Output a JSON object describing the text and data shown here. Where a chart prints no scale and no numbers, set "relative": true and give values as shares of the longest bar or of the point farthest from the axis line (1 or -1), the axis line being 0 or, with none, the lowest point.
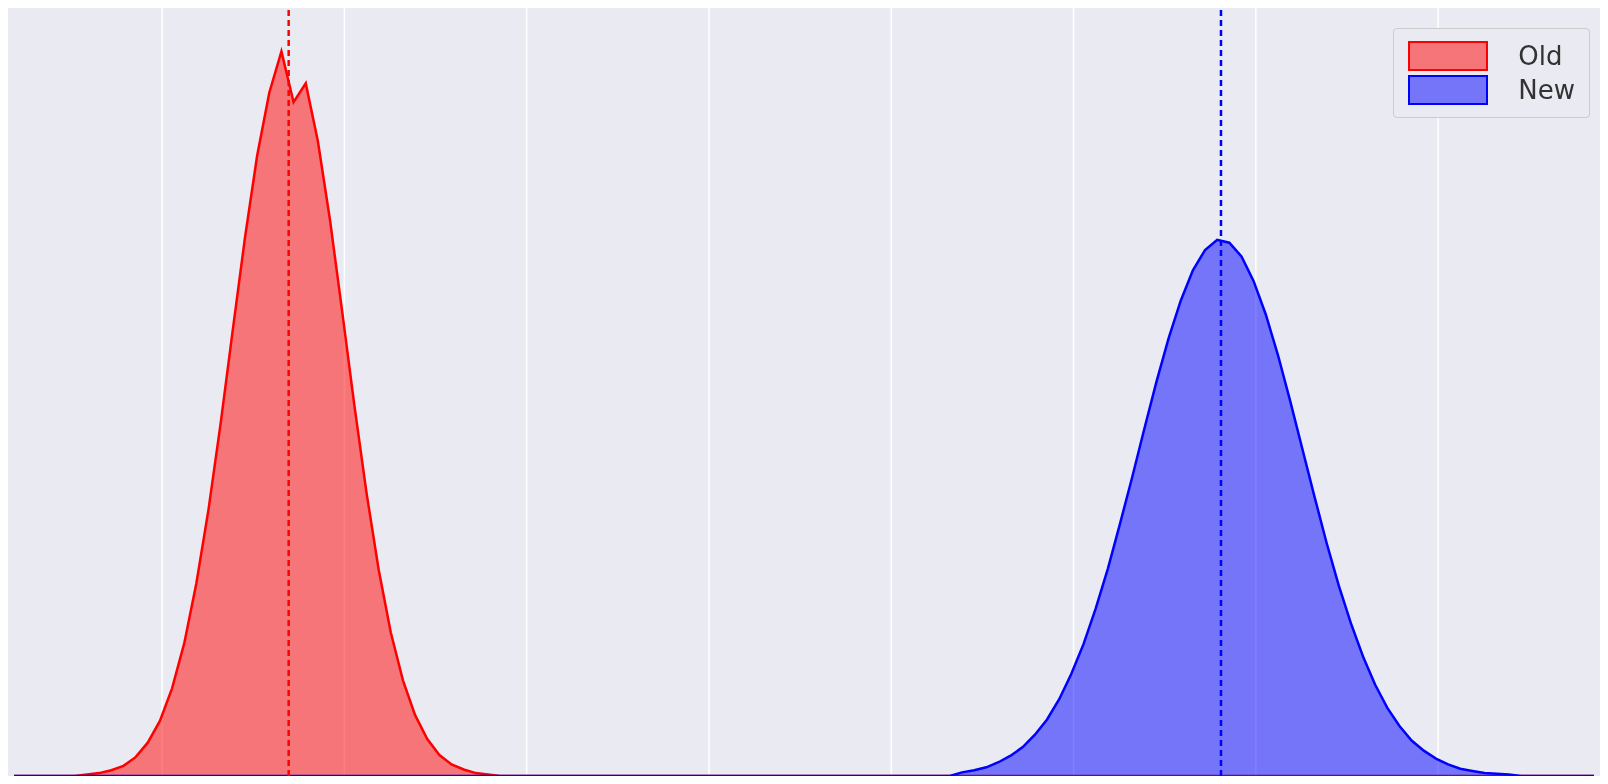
{
  "chart_data": {
    "type": "area",
    "relative": true,
    "grid": "x",
    "legend": "top right",
    "categories": [
      null,
      null,
      null,
      null,
      null,
      null,
      null,
      null,
      null,
      null,
      null,
      null,
      null,
      null,
      null,
      null,
      null,
      null,
      null,
      null,
      null,
      null,
      null,
      null,
      null,
      null,
      null,
      null,
      null,
      null,
      null,
      null,
      null,
      null,
      null,
      null,
      null,
      null,
      null,
      null,
      null,
      null,
      null,
      null,
      null,
      null,
      null,
      null,
      null,
      null,
      null,
      null,
      null,
      null,
      null,
      null,
      null,
      null,
      null,
      null,
      null,
      null,
      null,
      null,
      null,
      null,
      null,
      null,
      null,
      null,
      null,
      null,
      null,
      null,
      null,
      null,
      null,
      null,
      null,
      null,
      null,
      null,
      null,
      null,
      null,
      null,
      null,
      null,
      null,
      null,
      null,
      null,
      null,
      null,
      null,
      null,
      null,
      null,
      null,
      null,
      null,
      null,
      null,
      null,
      null,
      null,
      null,
      null,
      null,
      null,
      null,
      null,
      null,
      null,
      null,
      null,
      null,
      null,
      null,
      null,
      null,
      null,
      null,
      null,
      null,
      null,
      null,
      null,
      null,
      null,
      null
    ],
    "series": [
      {
        "name": "Old",
        "color": "#ff0000",
        "values": [
          0,
          0,
          0,
          0,
          0,
          0,
          0.002,
          0.004,
          0.008,
          0.014,
          0.026,
          0.046,
          0.076,
          0.121,
          0.183,
          0.266,
          0.368,
          0.487,
          0.616,
          0.743,
          0.856,
          0.943,
          1,
          0.93,
          0.956,
          0.876,
          0.767,
          0.641,
          0.512,
          0.391,
          0.285,
          0.198,
          0.132,
          0.084,
          0.051,
          0.029,
          0.016,
          0.009,
          0.004,
          0.002,
          0,
          0,
          0,
          0,
          0,
          0,
          0,
          0,
          0,
          0,
          0,
          0,
          0,
          0,
          0,
          0,
          0,
          0,
          0,
          0,
          0,
          0,
          0,
          0,
          0,
          0,
          0,
          0,
          0,
          0,
          0,
          0,
          0,
          0,
          0,
          0,
          0,
          0,
          0,
          0,
          0,
          0,
          0,
          0,
          0,
          0,
          0,
          0,
          0,
          0,
          0,
          0,
          0,
          0,
          0,
          0,
          0,
          0,
          0,
          0,
          0,
          0,
          0,
          0,
          0,
          0,
          0,
          0,
          0,
          0,
          0,
          0,
          0,
          0,
          0,
          0,
          0,
          0,
          0,
          0,
          0,
          0,
          0,
          0,
          0,
          0,
          0,
          0,
          0,
          0,
          0
        ]
      },
      {
        "name": "New",
        "color": "#0000ff",
        "values": [
          0,
          0,
          0,
          0,
          0,
          0,
          0,
          0,
          0,
          0,
          0,
          0,
          0,
          0,
          0,
          0,
          0,
          0,
          0,
          0,
          0,
          0,
          0,
          0,
          0,
          0,
          0,
          0,
          0,
          0,
          0,
          0,
          0,
          0,
          0,
          0,
          0,
          0,
          0,
          0,
          0,
          0,
          0,
          0,
          0,
          0,
          0,
          0,
          0,
          0,
          0,
          0,
          0,
          0,
          0,
          0,
          0,
          0,
          0,
          0,
          0,
          0,
          0,
          0,
          0,
          0,
          0,
          0,
          0,
          0,
          0,
          0,
          0,
          0,
          0,
          0,
          0,
          0,
          0.005,
          0.008,
          0.012,
          0.019,
          0.028,
          0.04,
          0.057,
          0.078,
          0.106,
          0.141,
          0.182,
          0.231,
          0.286,
          0.348,
          0.412,
          0.479,
          0.544,
          0.604,
          0.656,
          0.698,
          0.726,
          0.74,
          0.736,
          0.717,
          0.683,
          0.637,
          0.581,
          0.518,
          0.452,
          0.386,
          0.322,
          0.263,
          0.211,
          0.165,
          0.126,
          0.094,
          0.069,
          0.049,
          0.035,
          0.024,
          0.016,
          0.01,
          0.007,
          0.004,
          0.003,
          0.002,
          0,
          0,
          0,
          0,
          0,
          0,
          0
        ]
      }
    ]
  }
}
